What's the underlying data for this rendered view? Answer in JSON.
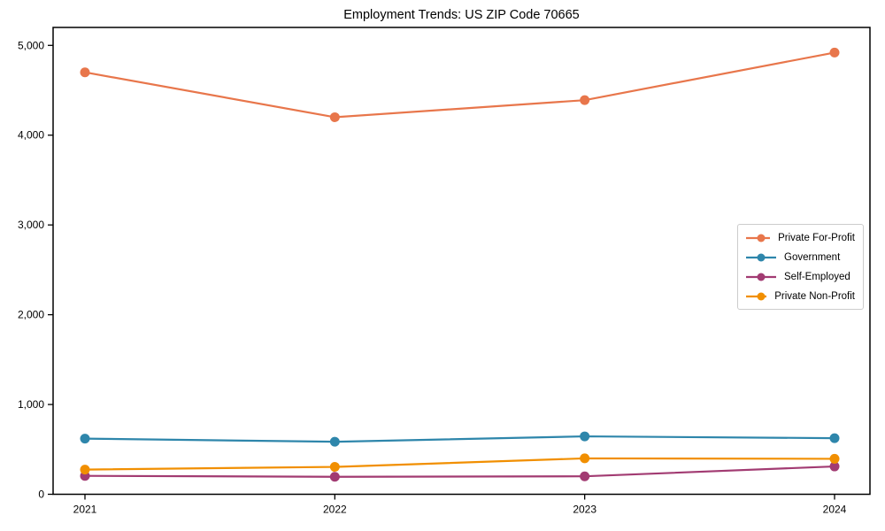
{
  "figure": {
    "background": "#ffffff"
  },
  "chart_data": {
    "type": "line",
    "title": "Employment Trends: US ZIP Code 70665",
    "categories": [
      "2021",
      "2022",
      "2023",
      "2024"
    ],
    "series": [
      {
        "name": "Private For-Profit",
        "color": "#E8764B",
        "values": [
          4700,
          4200,
          4390,
          4920
        ]
      },
      {
        "name": "Government",
        "color": "#2E86AB",
        "values": [
          620,
          585,
          645,
          625
        ]
      },
      {
        "name": "Self-Employed",
        "color": "#A23B72",
        "values": [
          205,
          195,
          200,
          310
        ]
      },
      {
        "name": "Private Non-Profit",
        "color": "#F18F01",
        "values": [
          275,
          305,
          400,
          395
        ]
      }
    ],
    "xlabel": "",
    "ylabel": "",
    "ylim": [
      0,
      5200
    ],
    "yticks": [
      0,
      1000,
      2000,
      3000,
      4000,
      5000
    ],
    "ytick_labels": [
      "0",
      "1,000",
      "2,000",
      "3,000",
      "4,000",
      "5,000"
    ],
    "grid": false,
    "legend_position": "right-middle",
    "axis_color": "#000000",
    "text_color": "#000000"
  }
}
